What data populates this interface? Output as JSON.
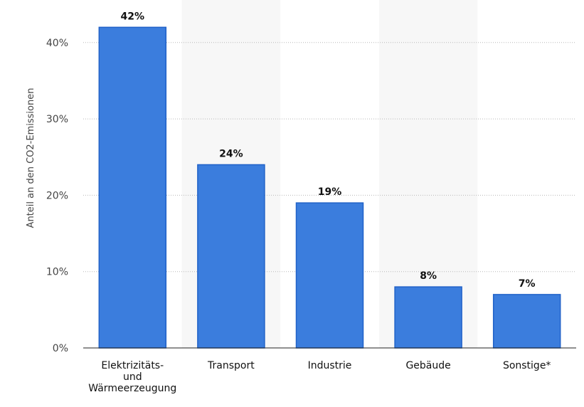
{
  "chart_data": {
    "type": "bar",
    "ylabel": "Anteil an den CO2-Emissionen",
    "categories": [
      [
        "Elektrizitäts-",
        "und",
        "Wärmeerzeugung"
      ],
      [
        "Transport"
      ],
      [
        "Industrie"
      ],
      [
        "Gebäude"
      ],
      [
        "Sonstige*"
      ]
    ],
    "values": [
      42,
      24,
      19,
      8,
      7
    ],
    "data_labels": [
      "42%",
      "24%",
      "19%",
      "8%",
      "7%"
    ],
    "yticks": [
      0,
      10,
      20,
      30,
      40
    ],
    "ytick_labels": [
      "0%",
      "10%",
      "20%",
      "30%",
      "40%"
    ],
    "ylim": [
      0,
      42
    ],
    "grid": true,
    "colors": {
      "bar": "#3b7ddd",
      "bar_border": "#2162c8",
      "band": "#f7f7f7"
    }
  }
}
